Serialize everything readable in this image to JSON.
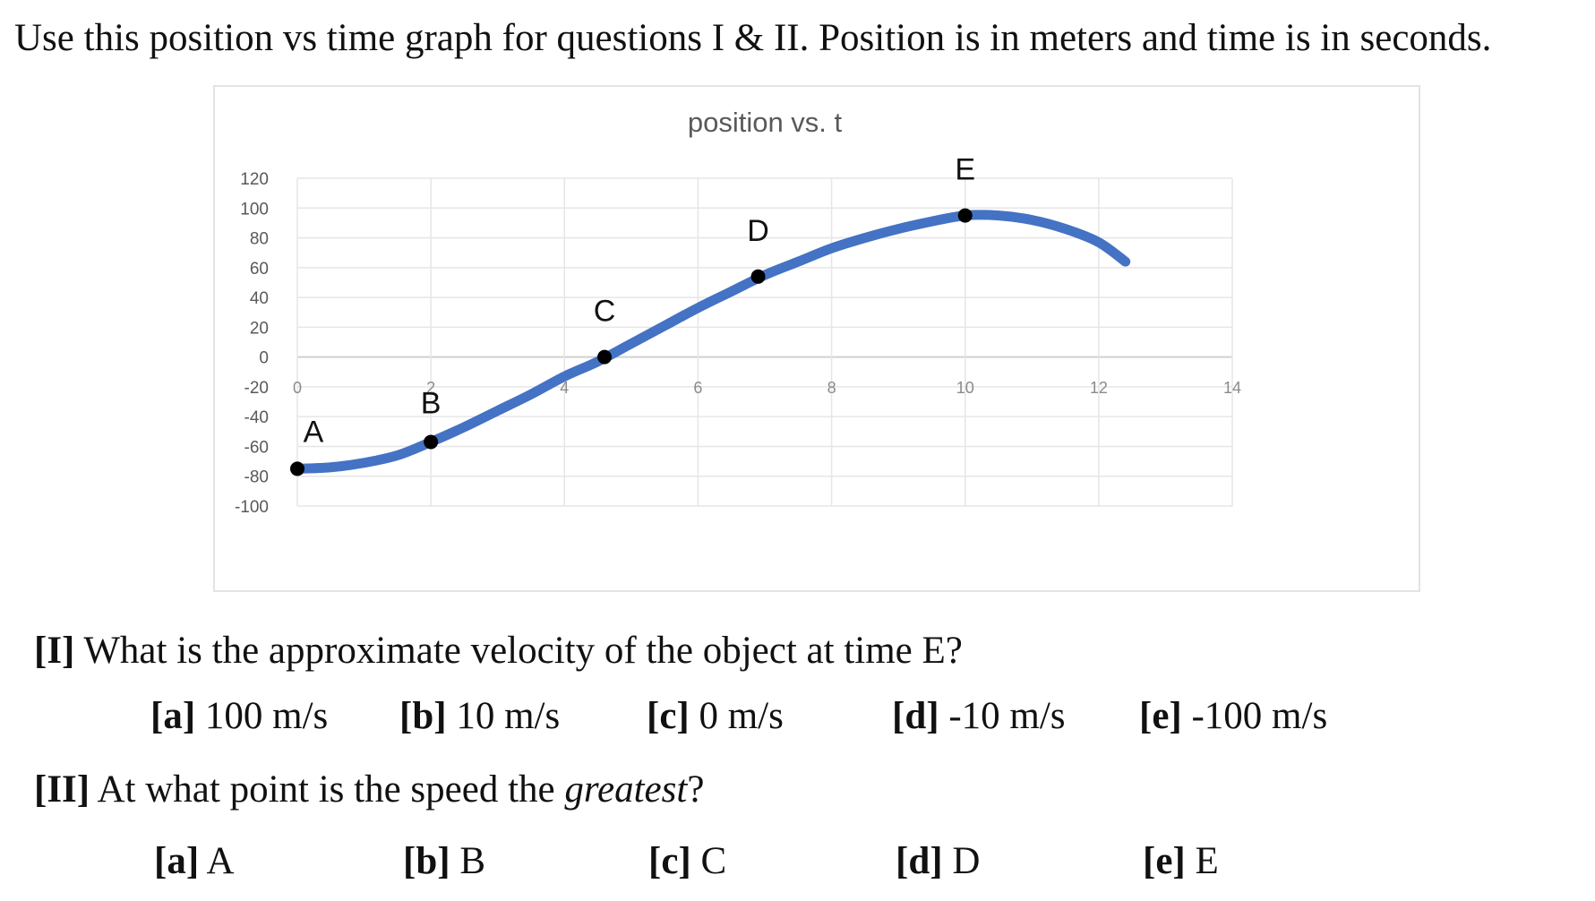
{
  "intro_text": "Use this position vs time graph for questions I & II. Position is in meters and time is in seconds.",
  "chart_data": {
    "type": "line",
    "title": "position vs. t",
    "xlabel": "",
    "ylabel": "",
    "xlim": [
      0,
      14
    ],
    "ylim": [
      -100,
      120
    ],
    "x_ticks": [
      "0",
      "2",
      "4",
      "6",
      "8",
      "10",
      "12",
      "14"
    ],
    "y_ticks": [
      "120",
      "100",
      "80",
      "60",
      "40",
      "20",
      "0",
      "-20",
      "-40",
      "-60",
      "-80",
      "-100"
    ],
    "grid": true,
    "series_color": "#4472C4",
    "curve": {
      "x": [
        0,
        0.5,
        1,
        1.5,
        2,
        2.5,
        3,
        3.5,
        4,
        4.5,
        5,
        5.5,
        6,
        6.5,
        7,
        7.5,
        8,
        8.5,
        9,
        9.5,
        10,
        10.5,
        11,
        11.5,
        12,
        12.4
      ],
      "y": [
        -75,
        -74,
        -71,
        -66,
        -57,
        -47,
        -36,
        -25,
        -13,
        -3,
        9,
        21,
        33,
        44,
        55,
        64,
        73,
        80,
        86,
        91,
        95,
        95,
        92,
        86,
        77,
        64
      ]
    },
    "points": [
      {
        "label": "A",
        "x": 0,
        "y": -75
      },
      {
        "label": "B",
        "x": 2,
        "y": -57
      },
      {
        "label": "C",
        "x": 4.6,
        "y": 0
      },
      {
        "label": "D",
        "x": 6.9,
        "y": 54
      },
      {
        "label": "E",
        "x": 10,
        "y": 95
      }
    ]
  },
  "question1": {
    "number": "[I]",
    "text": " What is the approximate velocity of the object at time E?",
    "options": [
      {
        "letter": "[a]",
        "text": " 100 m/s"
      },
      {
        "letter": "[b]",
        "text": " 10 m/s"
      },
      {
        "letter": "[c]",
        "text": " 0 m/s"
      },
      {
        "letter": "[d]",
        "text": " -10 m/s"
      },
      {
        "letter": "[e]",
        "text": " -100 m/s"
      }
    ]
  },
  "question2": {
    "number": "[II]",
    "text_before": " At what point is the speed the ",
    "text_emphasis": "greatest",
    "text_after": "?",
    "options": [
      {
        "letter": "[a]",
        "text": " A"
      },
      {
        "letter": "[b]",
        "text": " B"
      },
      {
        "letter": "[c]",
        "text": " C"
      },
      {
        "letter": "[d]",
        "text": " D"
      },
      {
        "letter": "[e]",
        "text": " E"
      }
    ]
  }
}
